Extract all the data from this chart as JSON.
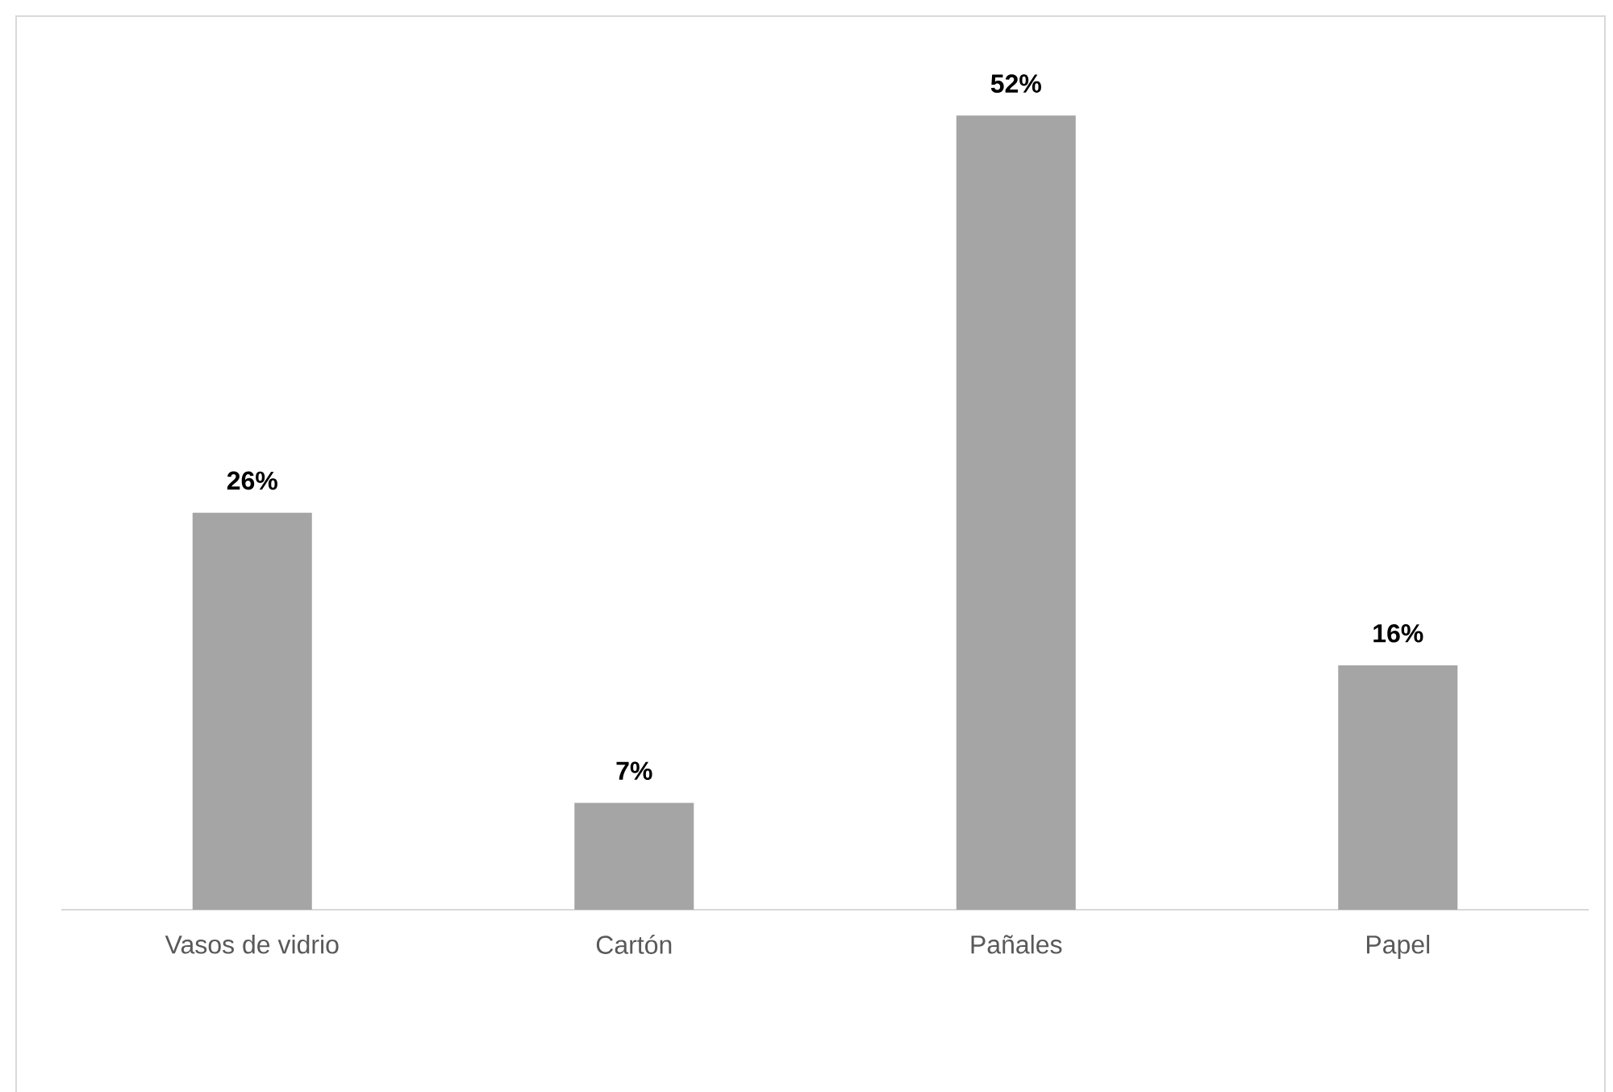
{
  "chart_data": {
    "type": "bar",
    "categories": [
      "Vasos de vidrio",
      "Cartón",
      "Pañales",
      "Papel"
    ],
    "values": [
      26,
      7,
      52,
      16
    ],
    "value_labels": [
      "26%",
      "7%",
      "52%",
      "16%"
    ],
    "color": "#a5a5a5"
  }
}
